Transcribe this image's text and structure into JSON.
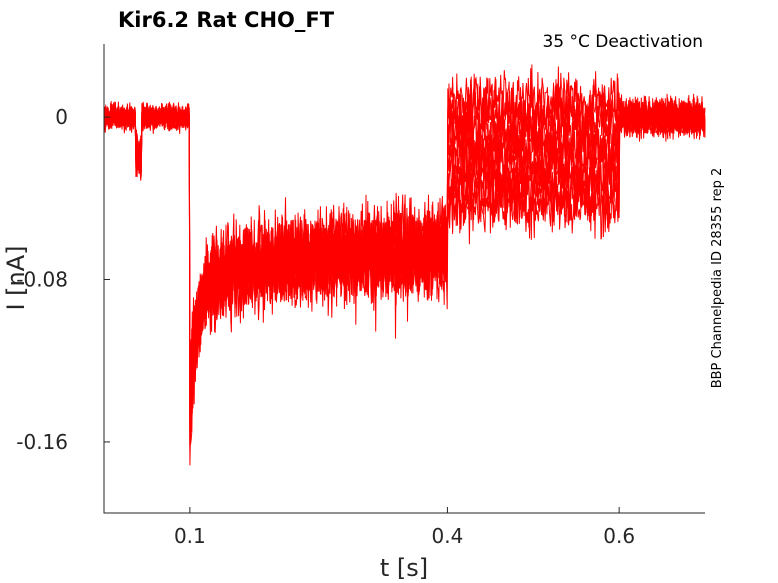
{
  "chart_data": {
    "type": "line",
    "title": "Kir6.2  Rat  CHO_FT",
    "subtitle": "35 °C  Deactivation",
    "side_label": "BBP Channelpedia ID 28355 rep 2",
    "xlabel": "t [s]",
    "ylabel": "I [nA]",
    "xlim": [
      0.0,
      0.7
    ],
    "ylim": [
      -0.195,
      0.036
    ],
    "xticks": [
      0.1,
      0.4,
      0.6
    ],
    "xtick_labels": [
      "0.1",
      "0.4",
      "0.6"
    ],
    "yticks": [
      0,
      -0.08,
      -0.16
    ],
    "ytick_labels": [
      "0",
      "-0.08",
      "-0.16"
    ],
    "grid": false,
    "line_color": "#ff0000",
    "protocol_segments_s": [
      0.0,
      0.04,
      0.1,
      0.4,
      0.6,
      0.7
    ],
    "series": [
      {
        "holding_nA": 0.0,
        "step_nA": -0.068,
        "tail_nA": 0.008,
        "spike_nA": -0.17
      },
      {
        "holding_nA": 0.0,
        "step_nA": -0.07,
        "tail_nA": 0.003,
        "spike_nA": -0.165
      },
      {
        "holding_nA": 0.0,
        "step_nA": -0.072,
        "tail_nA": -0.002,
        "spike_nA": -0.16
      },
      {
        "holding_nA": 0.0,
        "step_nA": -0.074,
        "tail_nA": -0.008,
        "spike_nA": -0.155
      },
      {
        "holding_nA": 0.0,
        "step_nA": -0.075,
        "tail_nA": -0.013,
        "spike_nA": -0.15
      },
      {
        "holding_nA": 0.0,
        "step_nA": -0.076,
        "tail_nA": -0.018,
        "spike_nA": -0.145
      },
      {
        "holding_nA": 0.0,
        "step_nA": -0.078,
        "tail_nA": -0.024,
        "spike_nA": -0.14
      },
      {
        "holding_nA": 0.0,
        "step_nA": -0.079,
        "tail_nA": -0.029,
        "spike_nA": -0.135
      },
      {
        "holding_nA": 0.0,
        "step_nA": -0.08,
        "tail_nA": -0.034,
        "spike_nA": -0.13
      },
      {
        "holding_nA": 0.0,
        "step_nA": -0.082,
        "tail_nA": -0.04,
        "spike_nA": -0.125
      },
      {
        "holding_nA": 0.0,
        "step_nA": -0.084,
        "tail_nA": -0.044,
        "spike_nA": -0.12
      }
    ]
  }
}
